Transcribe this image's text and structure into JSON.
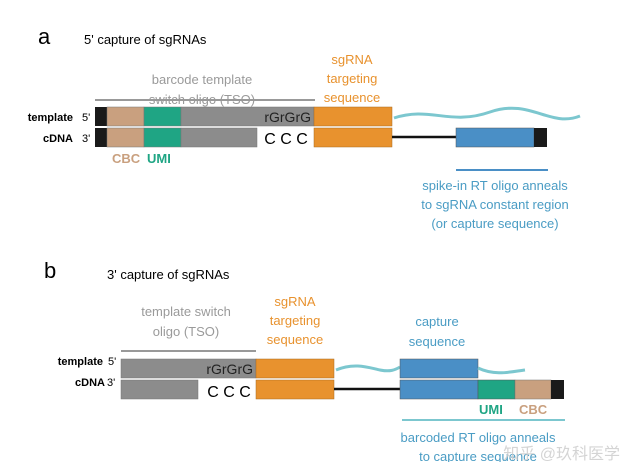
{
  "panel_a": {
    "letter": "a",
    "title": "5' capture of sgRNAs",
    "tso_label": [
      "barcode template",
      "switch oligo (TSO)"
    ],
    "sgrna_label": [
      "sgRNA",
      "targeting",
      "sequence"
    ],
    "template_label": "template",
    "template_end": "5'",
    "cdna_label": "cDNA",
    "cdna_end": "3'",
    "rgrgrg": "rGrGrG",
    "ccc": "C C C",
    "cbc": "CBC",
    "umi": "UMI",
    "spike_label": [
      "spike-in RT oligo anneals",
      "to sgRNA constant region",
      "(or capture sequence)"
    ]
  },
  "panel_b": {
    "letter": "b",
    "title": "3' capture of sgRNAs",
    "tso_label": [
      "template switch",
      "oligo (TSO)"
    ],
    "sgrna_label": [
      "sgRNA",
      "targeting",
      "sequence"
    ],
    "capture_label": [
      "capture",
      "sequence"
    ],
    "template_label": "template",
    "template_end": "5'",
    "cdna_label": "cDNA",
    "cdna_end": "3'",
    "rgrgrg": "rGrGrG",
    "ccc": "C C C",
    "umi": "UMI",
    "cbc": "CBC",
    "rt_label": [
      "barcoded RT oligo anneals",
      "to capture sequence"
    ]
  },
  "watermark": "知乎 @玖科医学",
  "colors": {
    "black": "#1a1a1a",
    "cbc": "#c9a07f",
    "umi": "#1fa584",
    "tso": "#8c8c8c",
    "sgrna": "#e8922e",
    "capture": "#4a8fc6",
    "rna": "#7cc7cf",
    "label_gray": "#9a9a9a"
  }
}
